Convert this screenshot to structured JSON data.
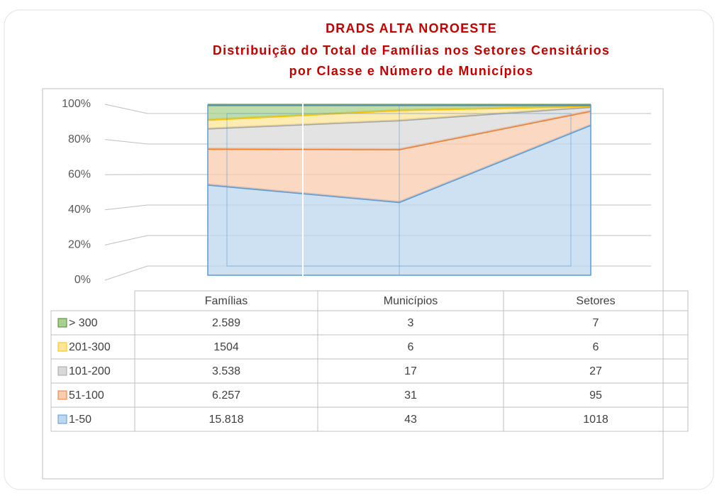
{
  "chart_data": {
    "type": "area",
    "title": "DRADS ALTA NOROESTE",
    "subtitle": [
      "Distribuição do Total de Famílias nos Setores Censitários",
      "por Classe e Número de Municípios"
    ],
    "categories": [
      "Famílias",
      "Municípios",
      "Setores"
    ],
    "series": [
      {
        "name": "> 300",
        "color": "#a9d18e",
        "edge": "#548235",
        "values": [
          2589,
          3,
          7
        ],
        "value_labels": [
          "2.589",
          "3",
          "7"
        ]
      },
      {
        "name": "201-300",
        "color": "#ffe699",
        "edge": "#ffc000",
        "values": [
          1504,
          6,
          6
        ],
        "value_labels": [
          "1504",
          "6",
          "6"
        ]
      },
      {
        "name": "101-200",
        "color": "#d9d9d9",
        "edge": "#a5a5a5",
        "values": [
          3538,
          17,
          27
        ],
        "value_labels": [
          "3.538",
          "17",
          "27"
        ]
      },
      {
        "name": "51-100",
        "color": "#f8cbad",
        "edge": "#ed7d31",
        "values": [
          6257,
          31,
          95
        ],
        "value_labels": [
          "6.257",
          "31",
          "95"
        ]
      },
      {
        "name": "1-50",
        "color": "#bdd7ee",
        "edge": "#5b9bd5",
        "values": [
          15818,
          43,
          1018
        ],
        "value_labels": [
          "15.818",
          "43",
          "1018"
        ]
      }
    ],
    "stacked": "percent",
    "ylim": [
      0,
      100
    ],
    "yticks": [
      {
        "value": 0,
        "label": "0%"
      },
      {
        "value": 20,
        "label": "20%"
      },
      {
        "value": 40,
        "label": "40%"
      },
      {
        "value": 60,
        "label": "60%"
      },
      {
        "value": 80,
        "label": "80%"
      },
      {
        "value": 100,
        "label": "100%"
      }
    ],
    "grid": true
  }
}
